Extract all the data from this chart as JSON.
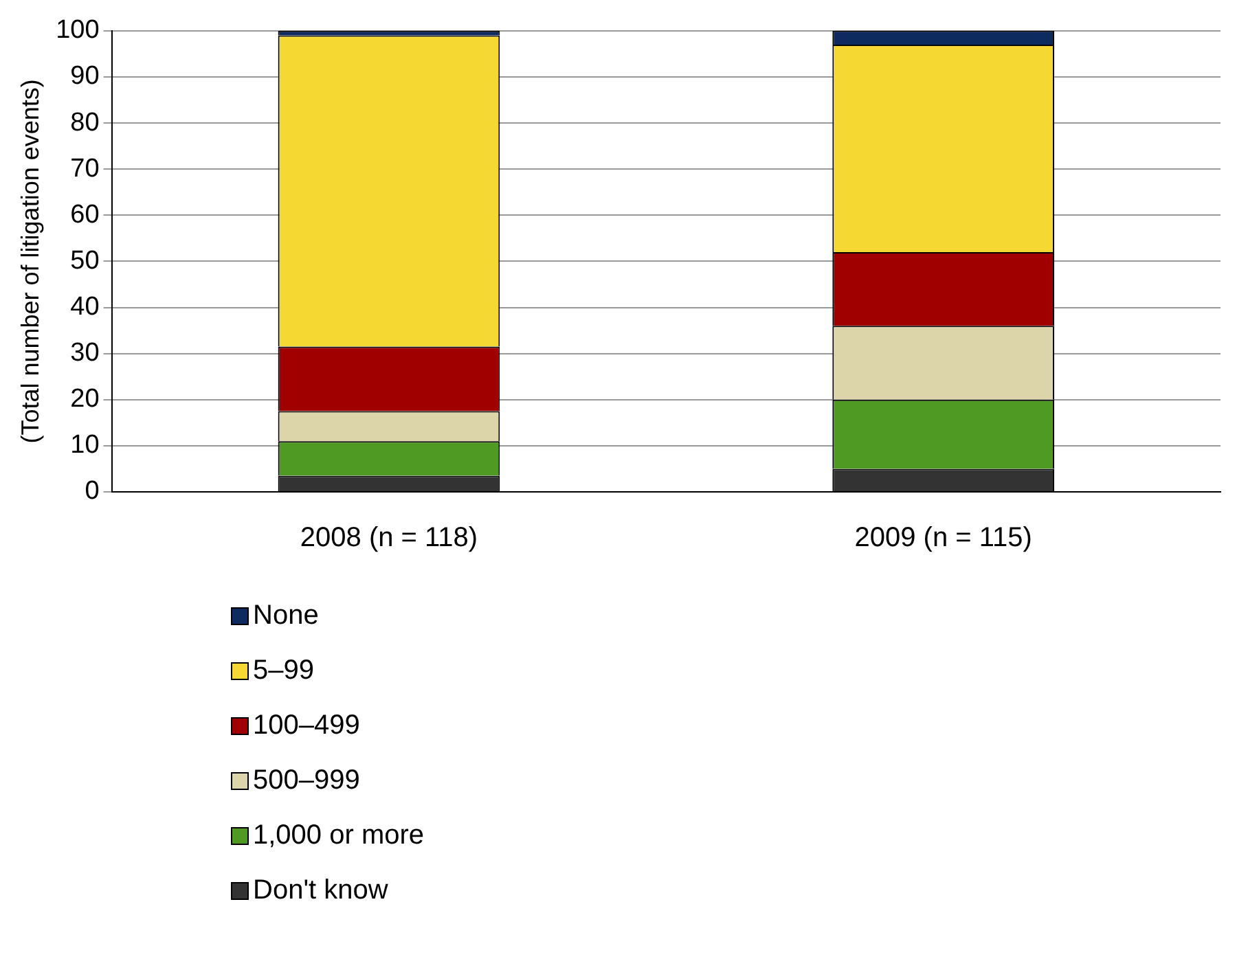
{
  "chart_data": {
    "type": "bar",
    "stacked": true,
    "ylabel": "(Total number of litigation events)",
    "categories": [
      "2008 (n = 118)",
      "2009 (n = 115)"
    ],
    "ylim": [
      0,
      100
    ],
    "yticks": [
      0,
      10,
      20,
      30,
      40,
      50,
      60,
      70,
      80,
      90,
      100
    ],
    "grid": "y",
    "legend": "bottom",
    "series": [
      {
        "name": "Don't know",
        "color": "#333333",
        "values": [
          3.5,
          5
        ]
      },
      {
        "name": "1,000 or more",
        "color": "#4e9a22",
        "values": [
          7.5,
          15
        ]
      },
      {
        "name": "500–999",
        "color": "#ddd5aa",
        "values": [
          6.5,
          16
        ]
      },
      {
        "name": "100–499",
        "color": "#a00000",
        "values": [
          14,
          16
        ]
      },
      {
        "name": "5–99",
        "color": "#f5d832",
        "values": [
          67.5,
          45
        ]
      },
      {
        "name": "None",
        "color": "#0d2b5e",
        "values": [
          1,
          3
        ]
      }
    ]
  }
}
